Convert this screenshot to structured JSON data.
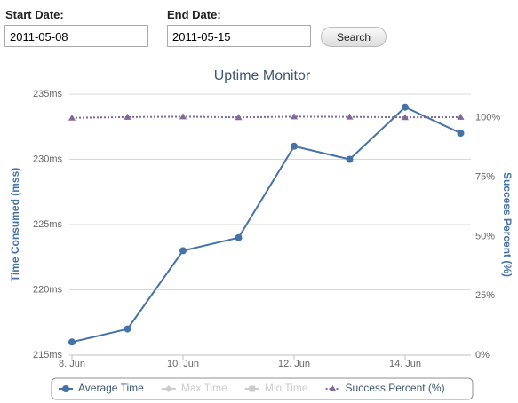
{
  "form": {
    "start_label": "Start Date:",
    "start_value": "2011-05-08",
    "end_label": "End Date:",
    "end_value": "2011-05-15",
    "button": "Search"
  },
  "chart_data": {
    "type": "line",
    "title": "Uptime Monitor",
    "categories": [
      "8. Jun",
      null,
      "10. Jun",
      null,
      "12. Jun",
      null,
      "14. Jun",
      null
    ],
    "ylabel": "Time Consumed (mss)",
    "y2label": "Success Percent (%)",
    "ylim": [
      215,
      235
    ],
    "yticks": [
      {
        "value": 215,
        "label": "215ms"
      },
      {
        "value": 220,
        "label": "220ms"
      },
      {
        "value": 225,
        "label": "225ms"
      },
      {
        "value": 230,
        "label": "230ms"
      },
      {
        "value": 235,
        "label": "235ms"
      }
    ],
    "y2lim": [
      0,
      110
    ],
    "y2ticks": [
      {
        "value": 0,
        "label": "0%"
      },
      {
        "value": 25,
        "label": "25%"
      },
      {
        "value": 50,
        "label": "50%"
      },
      {
        "value": 75,
        "label": "75%"
      },
      {
        "value": 100,
        "label": "100%"
      }
    ],
    "grid": true,
    "series": [
      {
        "name": "Average Time",
        "color": "#4572a7",
        "marker": "circle",
        "values": [
          216,
          217,
          223,
          224,
          231,
          230,
          234,
          232
        ]
      },
      {
        "name": "Max Time",
        "color": "#aa4643",
        "marker": "diamond",
        "visible": false
      },
      {
        "name": "Min Time",
        "color": "#89a54e",
        "marker": "square",
        "visible": false
      },
      {
        "name": "Success Percent (%)",
        "color": "#80699b",
        "marker": "triangle",
        "axis": "y2",
        "dash": true,
        "values": [
          100,
          100.3,
          100.5,
          100.2,
          100.5,
          100.4,
          100.2,
          100.3
        ]
      }
    ]
  }
}
